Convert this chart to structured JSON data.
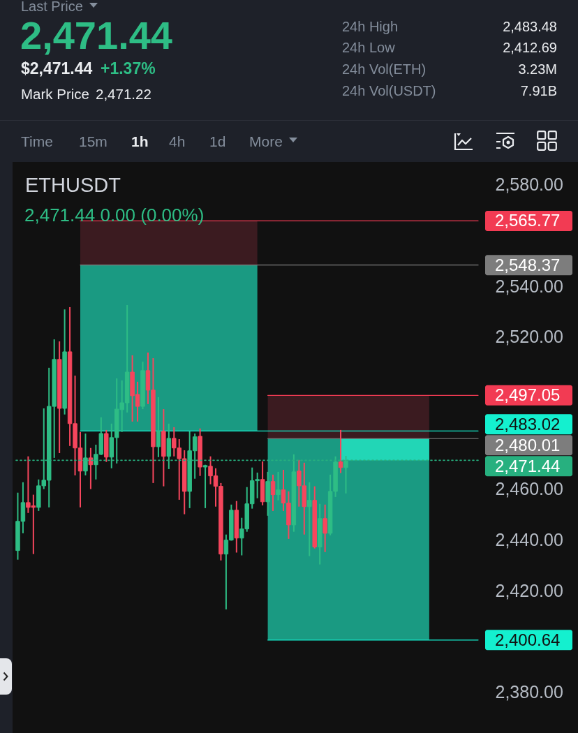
{
  "chart_data": {
    "type": "candlestick",
    "title": "ETHUSDT",
    "subtitle": "2,471.44 0.00 (0.00%)",
    "annotations": [
      "Last Price",
      "2,471.44",
      "$2,471.44",
      "+1.37%",
      "Mark Price",
      "2,471.22",
      "24h High",
      "2,483.48",
      "24h Low",
      "2,412.69",
      "24h Vol(ETH)",
      "3.23M",
      "24h Vol(USDT)",
      "7.91B",
      "Time",
      "15m",
      "1h",
      "4h",
      "1d",
      "More"
    ],
    "categories": [
      null,
      null,
      null,
      null,
      null,
      null,
      null,
      null,
      null,
      null,
      null,
      null,
      null,
      null,
      null,
      null,
      null,
      null,
      null,
      null,
      null,
      null,
      null,
      null,
      null,
      null,
      null,
      null,
      null,
      null,
      null,
      null,
      null,
      null,
      null,
      null,
      null,
      null,
      null,
      null,
      null,
      null,
      null,
      null,
      null,
      null,
      null,
      null,
      null,
      null,
      null,
      null,
      null,
      null,
      null,
      null,
      null,
      null,
      null,
      null,
      null,
      null,
      null,
      null,
      null,
      null,
      null,
      null,
      null,
      null,
      null,
      null,
      null,
      null,
      null,
      null,
      null,
      null,
      null,
      null,
      null,
      null,
      null,
      null,
      null,
      null,
      null,
      null,
      null
    ],
    "ohlc": [
      [
        2435.9,
        2458.7,
        2432.3,
        2447.4
      ],
      [
        2447.4,
        2462.8,
        2442.7,
        2454.8
      ],
      [
        2454.8,
        2473.0,
        2450.7,
        2452.9
      ],
      [
        2453.5,
        2457.9,
        2434.5,
        2452.9
      ],
      [
        2452.9,
        2463.9,
        2451.5,
        2461.4
      ],
      [
        2461.4,
        2491.9,
        2460.1,
        2463.6
      ],
      [
        2463.6,
        2507.9,
        2452.9,
        2492.7
      ],
      [
        2492.7,
        2519.1,
        2472.4,
        2511.2
      ],
      [
        2511.2,
        2518.3,
        2474.3,
        2491.9
      ],
      [
        2491.9,
        2530.9,
        2489.5,
        2514.2
      ],
      [
        2514.2,
        2531.8,
        2477.1,
        2485.9
      ],
      [
        2485.9,
        2504.8,
        2465.5,
        2476.3
      ],
      [
        2476.3,
        2482.6,
        2452.9,
        2467.2
      ],
      [
        2467.2,
        2482.0,
        2465.5,
        2472.4
      ],
      [
        2472.4,
        2476.3,
        2460.1,
        2469.7
      ],
      [
        2469.7,
        2477.6,
        2463.9,
        2473.8
      ],
      [
        2473.8,
        2488.4,
        2473.5,
        2482.0
      ],
      [
        2482.0,
        2483.4,
        2470.8,
        2472.7
      ],
      [
        2472.7,
        2485.9,
        2468.3,
        2480.4
      ],
      [
        2480.4,
        2503.7,
        2470.2,
        2491.6
      ],
      [
        2491.4,
        2502.9,
        2482.6,
        2494.1
      ],
      [
        2494.1,
        2532.6,
        2490.3,
        2506.2
      ],
      [
        2506.2,
        2512.8,
        2486.7,
        2496.9
      ],
      [
        2497.4,
        2502.4,
        2486.7,
        2492.7
      ],
      [
        2492.7,
        2510.3,
        2491.6,
        2506.8
      ],
      [
        2506.8,
        2513.9,
        2493.6,
        2499.1
      ],
      [
        2499.1,
        2511.7,
        2462.5,
        2476.8
      ],
      [
        2476.8,
        2496.3,
        2472.7,
        2482.9
      ],
      [
        2482.9,
        2491.6,
        2461.2,
        2473.0
      ],
      [
        2473.0,
        2485.9,
        2468.0,
        2480.1
      ],
      [
        2480.1,
        2484.5,
        2473.0,
        2476.3
      ],
      [
        2476.3,
        2479.8,
        2455.9,
        2472.1
      ],
      [
        2472.1,
        2475.4,
        2450.2,
        2459.2
      ],
      [
        2459.2,
        2482.9,
        2452.6,
        2475.2
      ],
      [
        2475.2,
        2482.0,
        2464.2,
        2480.7
      ],
      [
        2480.9,
        2484.0,
        2465.3,
        2468.8
      ],
      [
        2468.8,
        2469.7,
        2452.6,
        2469.4
      ],
      [
        2469.1,
        2473.0,
        2462.0,
        2465.3
      ],
      [
        2465.3,
        2468.3,
        2453.2,
        2461.2
      ],
      [
        2461.2,
        2462.5,
        2432.0,
        2434.5
      ],
      [
        2434.5,
        2442.2,
        2412.7,
        2440.0
      ],
      [
        2440.0,
        2454.0,
        2439.8,
        2451.8
      ],
      [
        2451.8,
        2455.4,
        2435.1,
        2440.8
      ],
      [
        2440.8,
        2448.8,
        2434.0,
        2444.4
      ],
      [
        2444.4,
        2460.9,
        2443.3,
        2454.3
      ],
      [
        2454.3,
        2468.6,
        2452.4,
        2463.4
      ],
      [
        2463.4,
        2466.6,
        2456.5,
        2463.9
      ],
      [
        2463.9,
        2471.0,
        2453.7,
        2455.1
      ],
      [
        2455.1,
        2466.9,
        2449.6,
        2463.1
      ],
      [
        2463.1,
        2465.8,
        2451.5,
        2457.9
      ],
      [
        2457.9,
        2466.9,
        2455.7,
        2459.8
      ],
      [
        2459.8,
        2467.7,
        2451.5,
        2454.6
      ],
      [
        2454.6,
        2459.2,
        2440.5,
        2446.0
      ],
      [
        2446.0,
        2473.8,
        2443.3,
        2466.9
      ],
      [
        2467.2,
        2471.6,
        2453.2,
        2461.4
      ],
      [
        2461.4,
        2470.5,
        2442.2,
        2453.2
      ],
      [
        2453.2,
        2462.8,
        2433.7,
        2455.7
      ],
      [
        2455.7,
        2461.2,
        2436.7,
        2437.3
      ],
      [
        2437.3,
        2454.3,
        2430.4,
        2448.5
      ],
      [
        2448.5,
        2454.0,
        2435.3,
        2442.7
      ],
      [
        2442.7,
        2465.8,
        2441.9,
        2459.2
      ],
      [
        2459.2,
        2473.0,
        2457.0,
        2470.8
      ],
      [
        2470.8,
        2483.4,
        2466.4,
        2468.6
      ],
      [
        2468.6,
        2473.2,
        2458.4,
        2471.4
      ],
      null,
      null,
      null,
      null,
      null,
      null,
      null,
      null,
      null,
      null,
      null,
      null,
      null,
      null,
      null,
      null,
      null,
      null,
      null,
      null,
      null,
      null,
      null,
      null,
      null
    ],
    "ylim": [
      2364,
      2589
    ],
    "yticks": [
      {
        "value": 2380,
        "label": "2,380.00"
      },
      {
        "value": 2420,
        "label": "2,420.00"
      },
      {
        "value": 2440,
        "label": "2,440.00"
      },
      {
        "value": 2460,
        "label": "2,460.00"
      },
      {
        "value": 2520,
        "label": "2,520.00"
      },
      {
        "value": 2540,
        "label": "2,540.00"
      },
      {
        "value": 2580,
        "label": "2,580.00"
      }
    ],
    "bands": [
      {
        "axis": "y",
        "from": 2548.37,
        "to": 2565.77,
        "color": "#3b1b20"
      },
      {
        "axis": "y",
        "from": 2483.02,
        "to": 2548.37,
        "color": "#1a9a82"
      },
      {
        "axis": "y",
        "from": 2480.01,
        "to": 2497.05,
        "color": "#3b1b20"
      },
      {
        "axis": "y",
        "from": 2400.64,
        "to": 2480.01,
        "color": "#1a9a82"
      },
      {
        "axis": "y",
        "from": 2471.44,
        "to": 2480.01,
        "color": "#22d6b6"
      }
    ],
    "ref_lines": [
      {
        "axis": "y",
        "value": 2565.77,
        "label": "2,565.77",
        "color": "#f23b53"
      },
      {
        "axis": "y",
        "value": 2548.37,
        "label": "2,548.37",
        "color": "#7d7d7d"
      },
      {
        "axis": "y",
        "value": 2497.05,
        "label": "2,497.05",
        "color": "#f23b53"
      },
      {
        "axis": "y",
        "value": 2483.02,
        "label": "2,483.02",
        "color": "#14f0cf"
      },
      {
        "axis": "y",
        "value": 2480.01,
        "label": "2,480.01",
        "color": "#7d7d7d"
      },
      {
        "axis": "y",
        "value": 2471.44,
        "label": "2,471.44",
        "color": "#27b07f",
        "line_style": "dotted"
      },
      {
        "axis": "y",
        "value": 2400.64,
        "label": "2,400.64",
        "color": "#14f0cf"
      }
    ]
  }
}
